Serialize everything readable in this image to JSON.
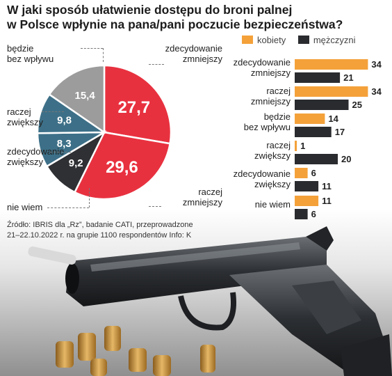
{
  "title_line1": "W jaki sposób ułatwienie dostępu do broni palnej",
  "title_line2": "w Polsce wpłynie na pana/pani poczucie bezpieczeństwa?",
  "source_line1": "Źródło: IBRIS dla „Rz”, badanie CATI, przeprowadzone",
  "source_line2": "21–22.10.2022 r. na grupie 1100 respondentów  Info: K",
  "colors": {
    "red": "#e8313f",
    "teal": "#3d7088",
    "gray": "#9c9c9c",
    "dark": "#2f3033",
    "orange": "#f4a13a",
    "bar_dark": "#2a2b2e"
  },
  "chart_data": [
    {
      "type": "pie",
      "donut": true,
      "slices": [
        {
          "label": "zdecydowanie zmniejszy",
          "value": 27.7,
          "value_label": "27,7",
          "color": "#e8313f"
        },
        {
          "label": "raczej zmniejszy",
          "value": 29.6,
          "value_label": "29,6",
          "color": "#e8313f"
        },
        {
          "label": "nie wiem",
          "value": 9.2,
          "value_label": "9,2",
          "color": "#2f3033"
        },
        {
          "label": "zdecydowanie zwiększy",
          "value": 8.3,
          "value_label": "8,3",
          "color": "#3d7088"
        },
        {
          "label": "raczej zwiększy",
          "value": 9.8,
          "value_label": "9,8",
          "color": "#3d7088"
        },
        {
          "label": "będzie bez wpływu",
          "value": 15.4,
          "value_label": "15,4",
          "color": "#9c9c9c"
        }
      ]
    },
    {
      "type": "bar",
      "orientation": "horizontal",
      "categories": [
        "zdecydowanie zmniejszy",
        "raczej zmniejszy",
        "będzie bez wpływu",
        "raczej zwiększy",
        "zdecydowanie zwiększy",
        "nie wiem"
      ],
      "series": [
        {
          "name": "kobiety",
          "color": "#f4a13a",
          "values": [
            34,
            34,
            14,
            1,
            6,
            11
          ]
        },
        {
          "name": "mężczyzni",
          "color": "#2a2b2e",
          "values": [
            21,
            25,
            17,
            20,
            11,
            6
          ]
        }
      ]
    }
  ],
  "donut_labels": [
    {
      "line1": "zdecydowanie",
      "line2": "zmniejszy"
    },
    {
      "line1": "raczej",
      "line2": "zmniejszy"
    },
    {
      "line1": "nie wiem",
      "line2": ""
    },
    {
      "line1": "zdecydowanie",
      "line2": "zwiększy"
    },
    {
      "line1": "raczej",
      "line2": "zwiększy"
    },
    {
      "line1": "będzie",
      "line2": "bez wpływu"
    }
  ],
  "bar_categories": [
    {
      "line1": "zdecydowanie",
      "line2": "zmniejszy"
    },
    {
      "line1": "raczej",
      "line2": "zmniejszy"
    },
    {
      "line1": "będzie",
      "line2": "bez wpływu"
    },
    {
      "line1": "raczej",
      "line2": "zwiększy"
    },
    {
      "line1": "zdecydowanie",
      "line2": "zwiększy"
    },
    {
      "line1": "nie wiem",
      "line2": ""
    }
  ],
  "legend": [
    {
      "name": "kobiety",
      "color": "#f4a13a"
    },
    {
      "name": "mężczyzni",
      "color": "#2a2b2e"
    }
  ]
}
